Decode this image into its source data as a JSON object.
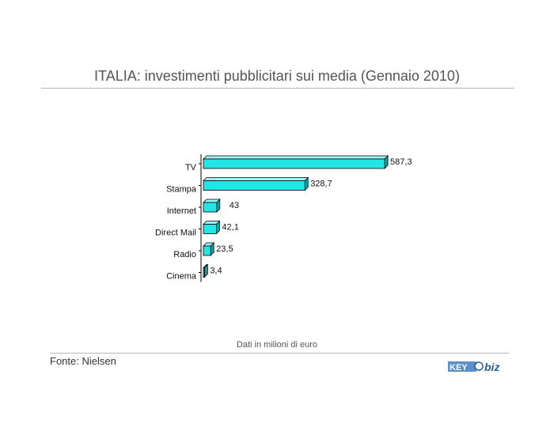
{
  "chart_data": {
    "type": "bar",
    "orientation": "horizontal",
    "title": "ITALIA: investimenti pubblicitari sui media (Gennaio 2010)",
    "categories": [
      "TV",
      "Stampa",
      "Internet",
      "Direct Mail",
      "Radio",
      "Cinema"
    ],
    "values": [
      587.3,
      328.7,
      43,
      42.1,
      23.5,
      3.4
    ],
    "value_labels": [
      "587,3",
      "328,7",
      "43",
      "42,1",
      "23,5",
      "3,4"
    ],
    "xlim": [
      0,
      600
    ],
    "note": "Dati in milioni di euro",
    "grid": false,
    "legend": "none",
    "colors": {
      "bar_front": "#22e6e6",
      "bar_top": "#9ff4f4",
      "bar_side": "#11a3a3",
      "outline": "#000000"
    }
  },
  "footer": {
    "source": "Fonte: Nielsen",
    "logo_text": "KEY4biz"
  }
}
